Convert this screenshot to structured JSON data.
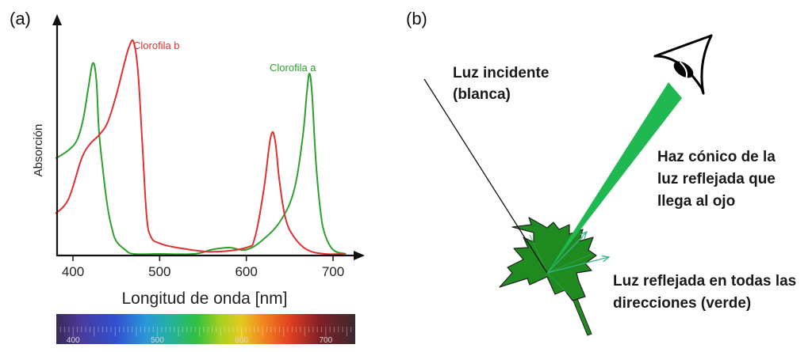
{
  "panel_a": {
    "label": "(a)",
    "chart_data": {
      "type": "line",
      "title": "",
      "xlabel": "Longitud de onda [nm]",
      "ylabel": "Absorción",
      "xlim": [
        380,
        735
      ],
      "ylim": [
        0,
        1
      ],
      "x_ticks": [
        400,
        500,
        600,
        700
      ],
      "series": [
        {
          "name": "Clorofila a",
          "color": "#2ea02e",
          "x": [
            380,
            395,
            405,
            412,
            418,
            423,
            427,
            430,
            435,
            440,
            445,
            450,
            460,
            470,
            500,
            540,
            560,
            580,
            600,
            620,
            640,
            655,
            665,
            670,
            673,
            676,
            680,
            685,
            690,
            700,
            715
          ],
          "y": [
            0.45,
            0.49,
            0.54,
            0.64,
            0.79,
            0.9,
            0.82,
            0.58,
            0.38,
            0.22,
            0.12,
            0.06,
            0.02,
            0.0,
            0.0,
            0.0,
            0.02,
            0.03,
            0.02,
            0.07,
            0.16,
            0.3,
            0.55,
            0.77,
            0.85,
            0.74,
            0.45,
            0.22,
            0.1,
            0.02,
            0.0
          ]
        },
        {
          "name": "Clorofila b",
          "color": "#e03030",
          "x": [
            380,
            395,
            410,
            420,
            430,
            440,
            450,
            460,
            465,
            470,
            475,
            480,
            485,
            490,
            500,
            520,
            560,
            600,
            610,
            620,
            628,
            633,
            638,
            645,
            655,
            670,
            690,
            713
          ],
          "y": [
            0.19,
            0.26,
            0.45,
            0.52,
            0.56,
            0.62,
            0.75,
            0.91,
            0.98,
            1.0,
            0.86,
            0.52,
            0.18,
            0.08,
            0.05,
            0.03,
            0.01,
            0.03,
            0.08,
            0.3,
            0.55,
            0.54,
            0.35,
            0.17,
            0.08,
            0.02,
            0.0,
            0.0
          ]
        }
      ]
    },
    "spectrum_bar": {
      "tick_labels": [
        "400",
        "500",
        "600",
        "700"
      ]
    }
  },
  "panel_b": {
    "label": "(b)",
    "incident_light_label": [
      "Luz incidente",
      "(blanca)"
    ],
    "cone_label": [
      "Haz cónico de la",
      "luz reflejada que",
      "llega al ojo"
    ],
    "reflected_label": [
      "Luz reflejada en todas las",
      "direcciones (verde)"
    ],
    "colors": {
      "leaf_fill": "#1f8a1f",
      "cone_fill": "#20b850",
      "reflected_arrows": "#33b58a"
    }
  }
}
